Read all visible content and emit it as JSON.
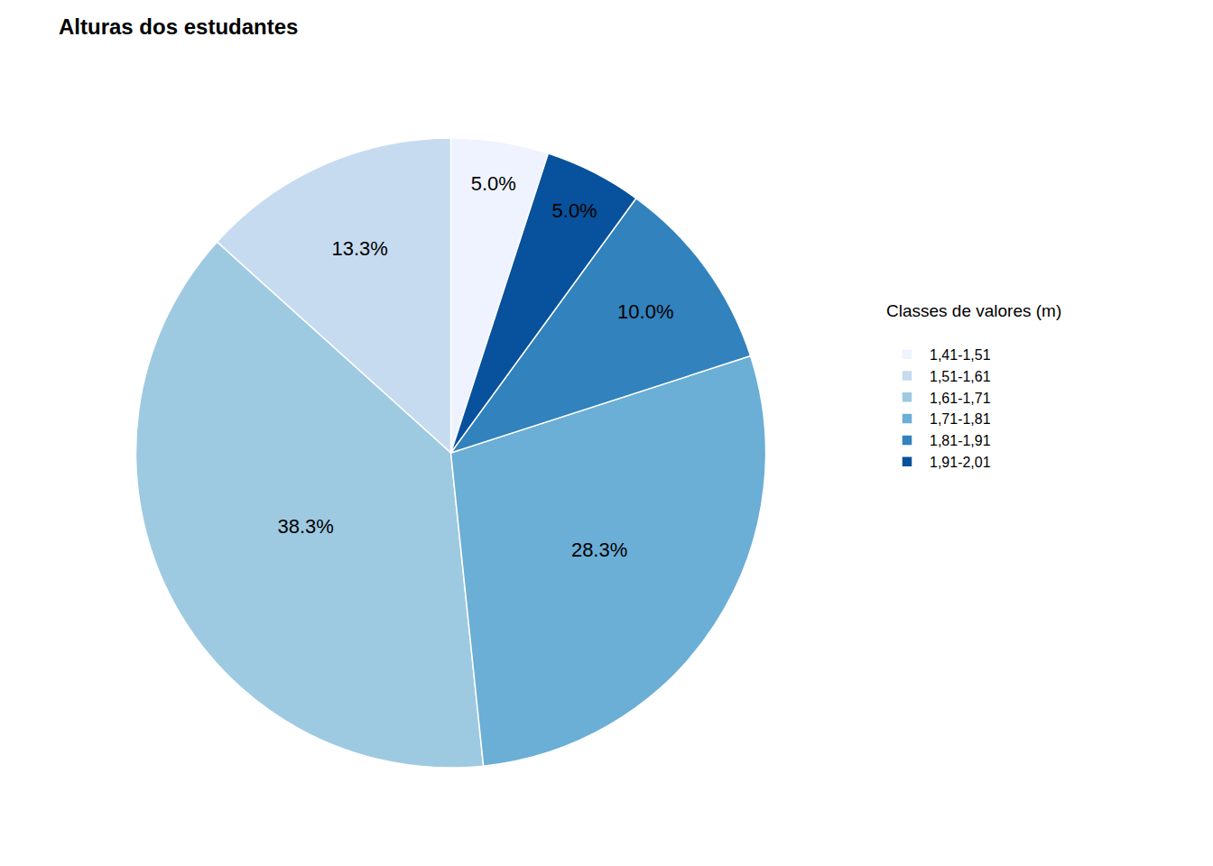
{
  "chart_data": {
    "type": "pie",
    "title": "Alturas dos estudantes",
    "legend_title": "Classes de valores (m)",
    "categories": [
      "1,41-1,51",
      "1,51-1,61",
      "1,61-1,71",
      "1,71-1,81",
      "1,81-1,91",
      "1,91-2,01"
    ],
    "values": [
      5.0,
      13.3,
      38.3,
      28.3,
      10.0,
      5.0
    ],
    "value_labels": [
      "5.0%",
      "13.3%",
      "38.3%",
      "28.3%",
      "10.0%",
      "5.0%"
    ],
    "colors": [
      "#eff3ff",
      "#c6dbef",
      "#9ecae1",
      "#6baed6",
      "#3182bd",
      "#08519c"
    ],
    "data_labels": true,
    "legend": "right"
  }
}
